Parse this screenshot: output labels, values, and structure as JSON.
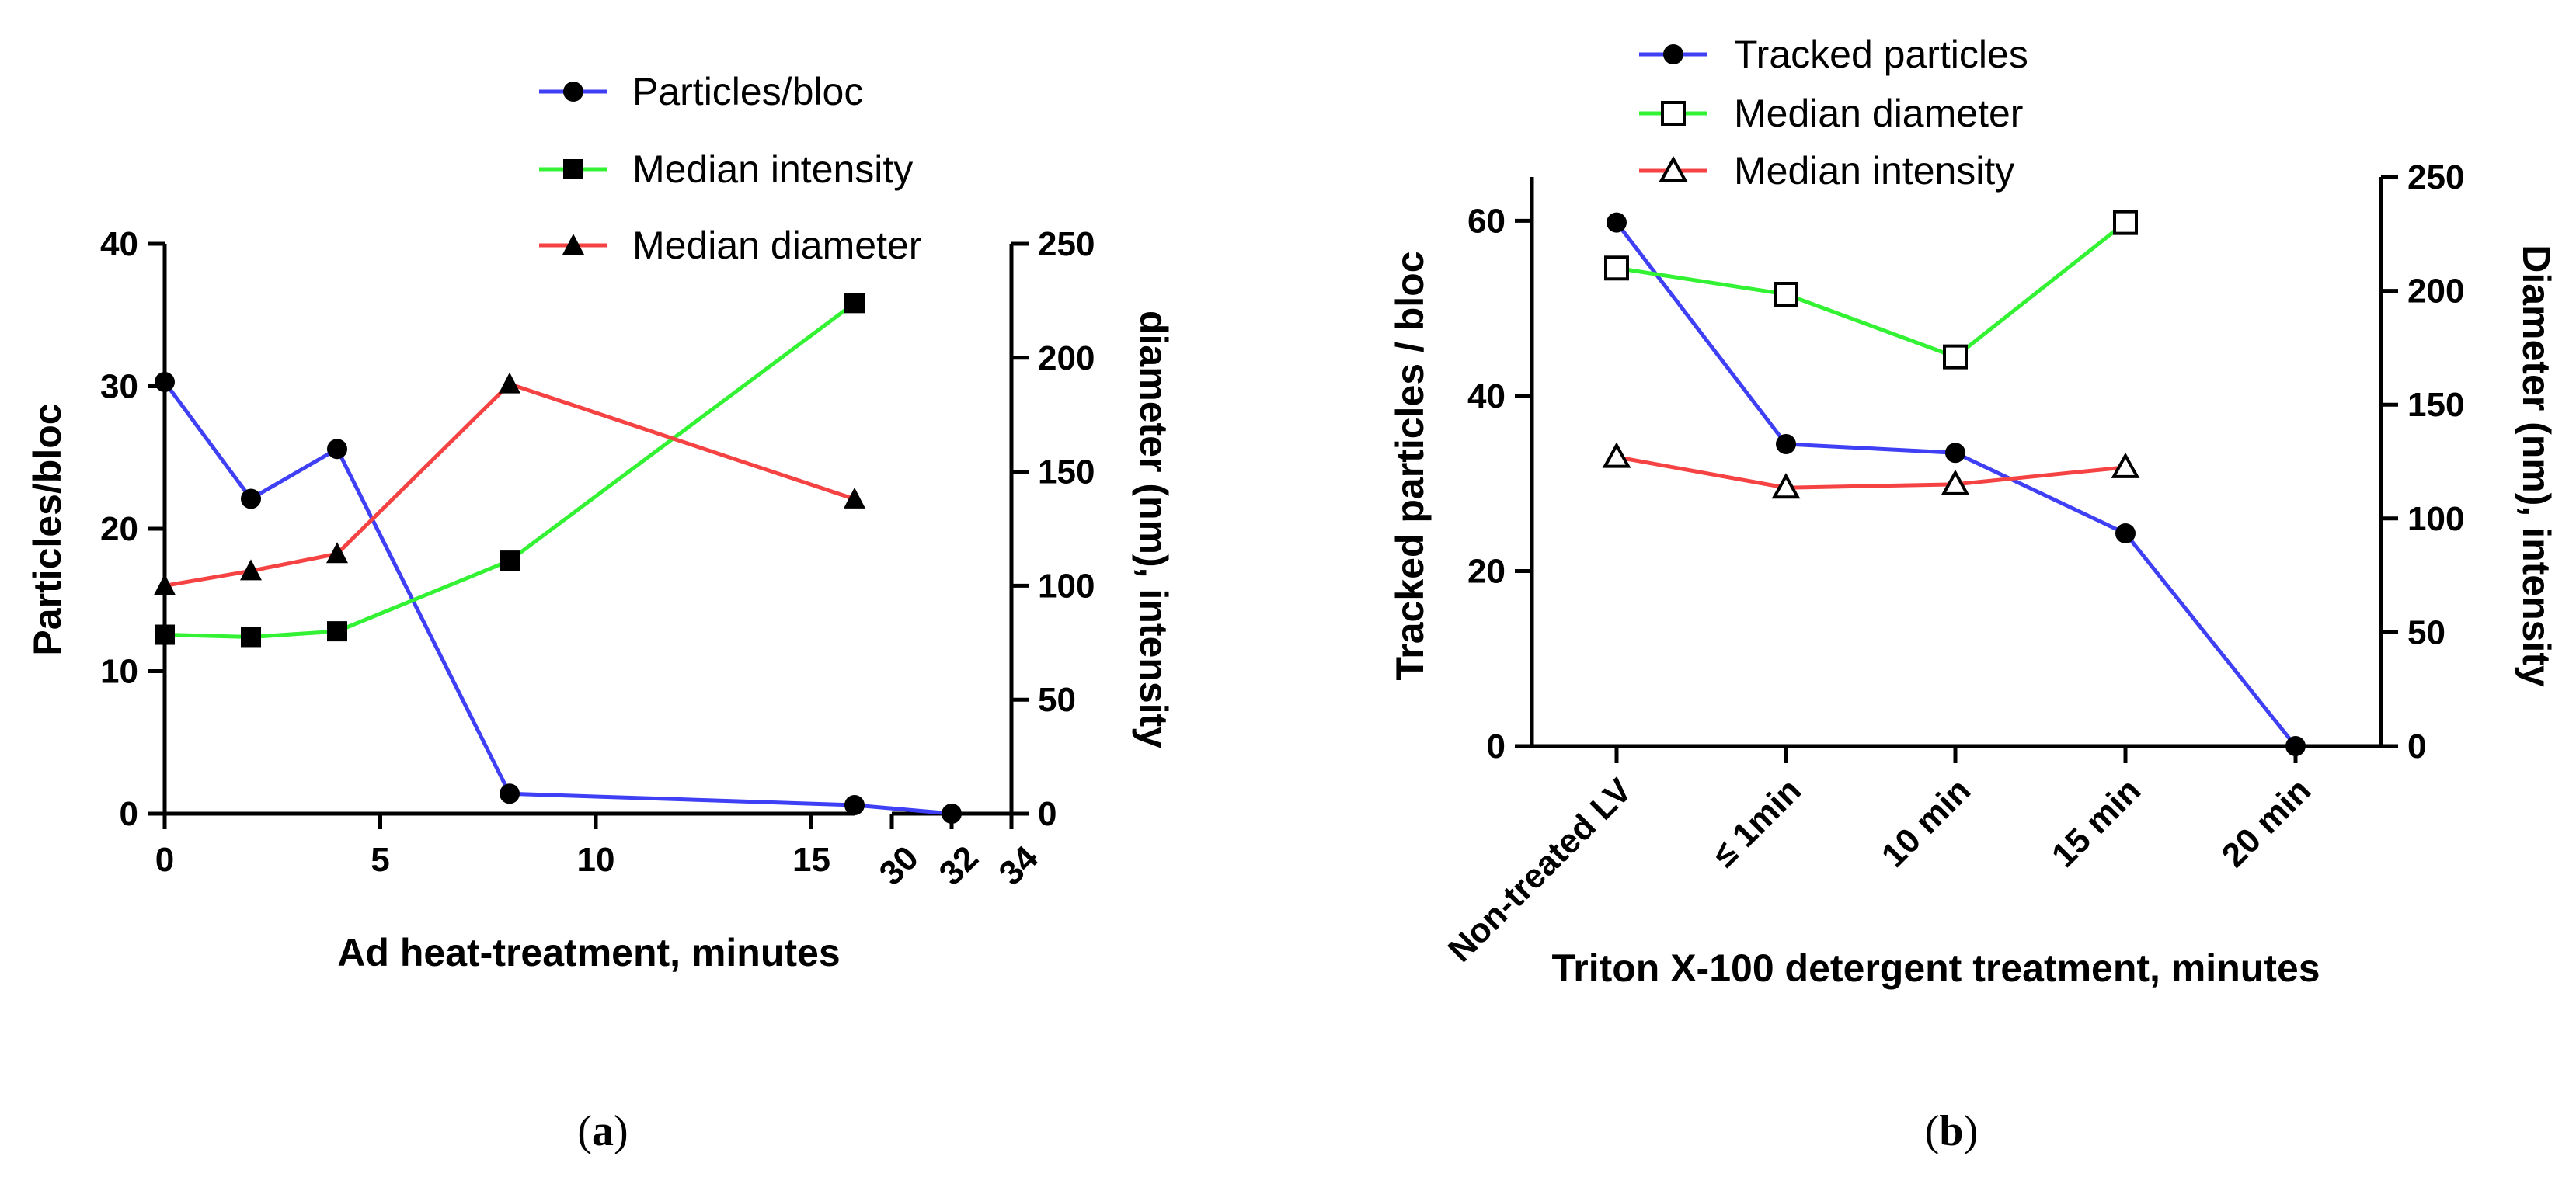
{
  "chart_data": [
    {
      "panel_label": "a",
      "type": "line",
      "xlabel": "Ad heat-treatment, minutes",
      "ylabel_left": "Particles/bloc",
      "ylabel_right": "diameter (nm), intensity",
      "x_segments": [
        {
          "range": [
            0,
            16
          ],
          "ticks": [
            "0",
            "5",
            "10",
            "15"
          ]
        },
        {
          "range": [
            30,
            34
          ],
          "ticks": [
            "30",
            "32",
            "34"
          ]
        }
      ],
      "ylim_left": [
        0,
        40
      ],
      "yticks_left": [
        "0",
        "10",
        "20",
        "30",
        "40"
      ],
      "ylim_right": [
        0,
        250
      ],
      "yticks_right": [
        "0",
        "50",
        "100",
        "150",
        "200",
        "250"
      ],
      "legend_position": "top",
      "series": [
        {
          "name": "Particles/bloc",
          "axis": "left",
          "color": "#3f3ff5",
          "marker": "circle",
          "x": [
            0,
            2,
            4,
            8,
            16,
            32
          ],
          "y": [
            30.3,
            22.1,
            25.6,
            1.4,
            0.6,
            0
          ]
        },
        {
          "name": "Median intensity",
          "axis": "right",
          "color": "#33f233",
          "marker": "square",
          "x": [
            0,
            2,
            4,
            8,
            16
          ],
          "y": [
            78.5,
            77.5,
            80,
            111,
            224
          ]
        },
        {
          "name": "Median diameter",
          "axis": "right",
          "color": "#f54242",
          "marker": "triangle",
          "x": [
            0,
            2,
            4,
            8,
            16
          ],
          "y": [
            100,
            106.5,
            114,
            188.5,
            138
          ]
        }
      ]
    },
    {
      "panel_label": "b",
      "type": "line",
      "xlabel": "Triton X-100 detergent treatment, minutes",
      "ylabel_left": "Tracked particles / bloc",
      "ylabel_right": "Diameter (nm), intensity",
      "categories": [
        "Non-treated LV",
        "≤ 1min",
        "10 min",
        "15 min",
        "20 min"
      ],
      "ylim_left": [
        0,
        65
      ],
      "yticks_left": [
        "0",
        "20",
        "40",
        "60"
      ],
      "ylim_right": [
        0,
        250
      ],
      "yticks_right": [
        "0",
        "50",
        "100",
        "150",
        "200",
        "250"
      ],
      "legend_position": "top",
      "series": [
        {
          "name": "Tracked particles",
          "axis": "left",
          "color": "#3f3ff5",
          "marker": "circle",
          "values": [
            59.8,
            34.5,
            33.5,
            24.3,
            0
          ]
        },
        {
          "name": "Median diameter",
          "axis": "right",
          "color": "#33f233",
          "marker": "open-square",
          "values": [
            210,
            198.5,
            171,
            230,
            null
          ]
        },
        {
          "name": "Median intensity",
          "axis": "right",
          "color": "#f54242",
          "marker": "open-triangle",
          "values": [
            127,
            113.5,
            115,
            122.5,
            null
          ]
        }
      ]
    }
  ]
}
